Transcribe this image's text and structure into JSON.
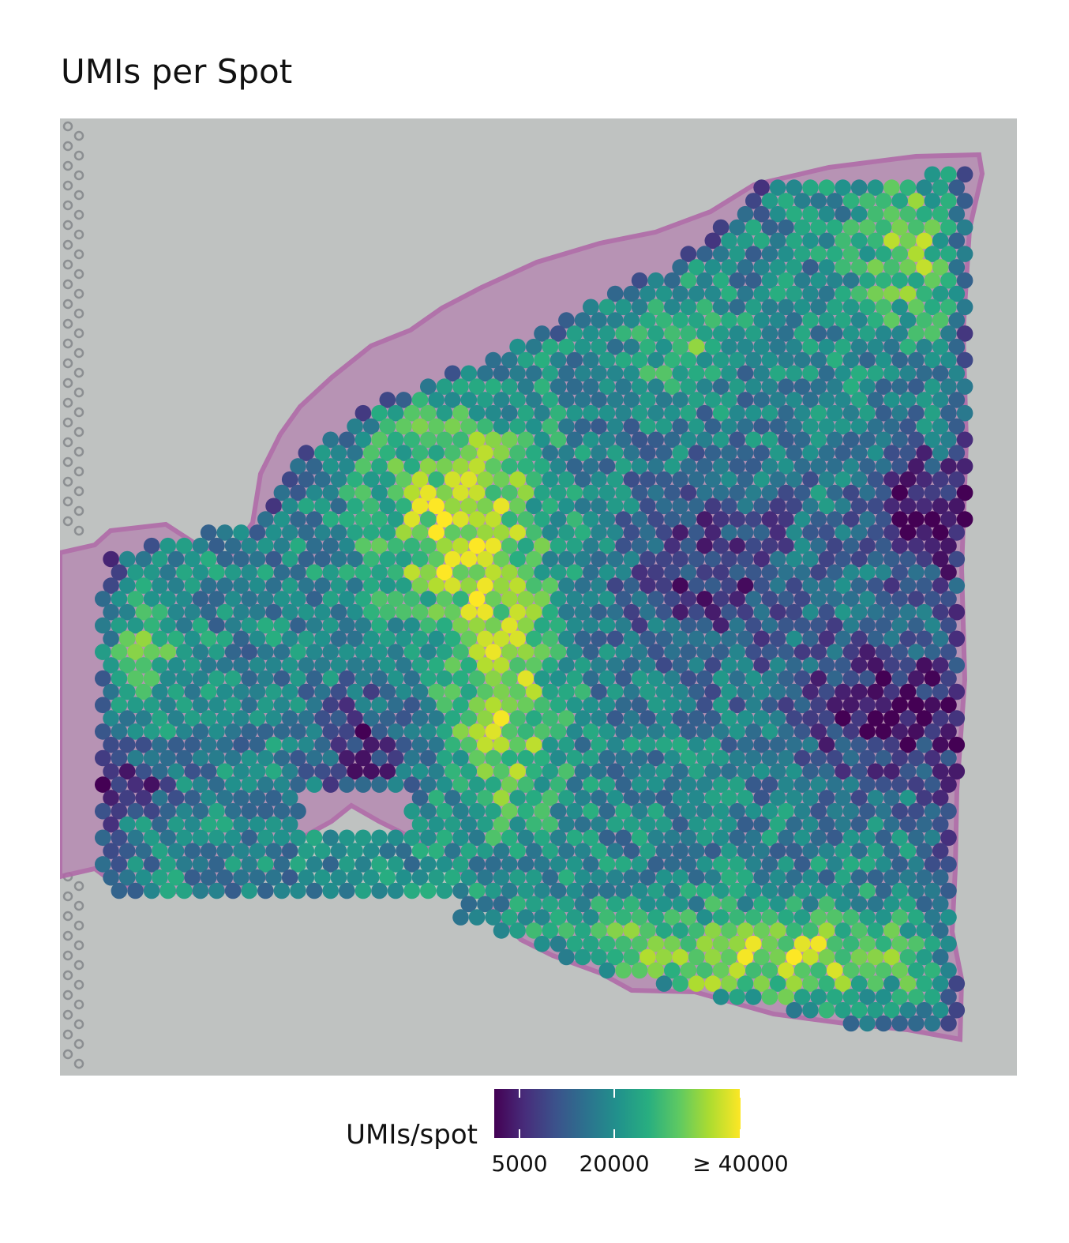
{
  "chart_data": {
    "type": "heatmap",
    "subtype": "spatial-spot-map",
    "title": "UMIs per Spot",
    "background": "H&E tissue image",
    "legend": {
      "title": "UMIs/spot",
      "placement": "bottom",
      "scale": "viridis",
      "ticks": [
        {
          "value": 5000,
          "label": "5000"
        },
        {
          "value": 20000,
          "label": "20000"
        },
        {
          "value": 40000,
          "label": "≥ 40000"
        }
      ],
      "range": [
        1000,
        40000
      ]
    },
    "colors": {
      "palette": [
        "#440154",
        "#472d7b",
        "#3b528b",
        "#2c728e",
        "#21918c",
        "#28ae80",
        "#5ec962",
        "#addc30",
        "#fde725"
      ],
      "panel_background": "#bfc2c1",
      "tissue_edge": "#c98fbe"
    },
    "spot_value_pattern": "high counts (yellow) concentrated at the center-left and along the bottom edge; low counts (purple) along the upper outline and on the right side"
  }
}
